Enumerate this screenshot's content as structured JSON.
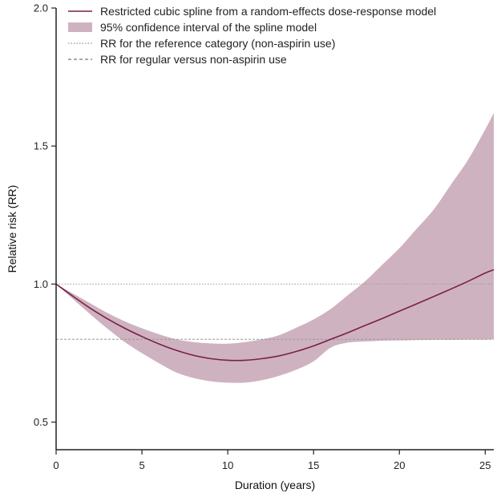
{
  "chart_data": {
    "type": "line",
    "xlabel": "Duration (years)",
    "ylabel": "Relative risk (RR)",
    "xlim": [
      0,
      25.5
    ],
    "ylim": [
      0.4,
      2.0
    ],
    "x_ticks": [
      0,
      5,
      10,
      15,
      20,
      25
    ],
    "y_ticks": [
      0.5,
      1.0,
      1.5,
      2.0
    ],
    "x_tick_labels": [
      "0",
      "5",
      "10",
      "15",
      "20",
      "25"
    ],
    "y_tick_labels": [
      "0.5",
      "1.0",
      "1.5",
      "2.0"
    ],
    "grid": false,
    "legend_position": "top",
    "legend": [
      {
        "label": "Restricted cubic spline from a random-effects dose-response model",
        "style": "solid-line"
      },
      {
        "label": "95% confidence interval of the spline model",
        "style": "filled-band"
      },
      {
        "label": "RR for the reference category (non-aspirin use)",
        "style": "dotted-line"
      },
      {
        "label": "RR for regular versus non-aspirin use",
        "style": "dashed-line"
      }
    ],
    "reference_lines": {
      "reference_category_rr": 1.0,
      "regular_vs_non_use_rr": 0.8
    },
    "series": [
      {
        "name": "Restricted cubic spline from a random-effects dose-response model",
        "type": "line",
        "x": [
          0,
          1,
          2,
          3,
          4,
          5,
          6,
          7,
          8,
          9,
          10,
          11,
          12,
          13,
          14,
          15,
          16,
          17,
          18,
          19,
          20,
          21,
          22,
          23,
          24,
          25,
          25.5
        ],
        "y": [
          1.0,
          0.955,
          0.912,
          0.874,
          0.84,
          0.81,
          0.783,
          0.76,
          0.742,
          0.73,
          0.724,
          0.724,
          0.73,
          0.74,
          0.756,
          0.776,
          0.8,
          0.824,
          0.85,
          0.875,
          0.902,
          0.928,
          0.955,
          0.982,
          1.01,
          1.04,
          1.052
        ]
      },
      {
        "name": "95% confidence interval of the spline model",
        "type": "band",
        "x": [
          0,
          1,
          2,
          3,
          4,
          5,
          6,
          7,
          8,
          9,
          10,
          11,
          12,
          13,
          14,
          15,
          16,
          17,
          18,
          19,
          20,
          21,
          22,
          23,
          24,
          25,
          25.5
        ],
        "lower": [
          1.0,
          0.945,
          0.89,
          0.838,
          0.79,
          0.75,
          0.713,
          0.68,
          0.66,
          0.648,
          0.643,
          0.643,
          0.652,
          0.668,
          0.69,
          0.72,
          0.77,
          0.788,
          0.792,
          0.795,
          0.796,
          0.797,
          0.798,
          0.798,
          0.799,
          0.799,
          0.8
        ],
        "upper": [
          1.0,
          0.965,
          0.93,
          0.895,
          0.865,
          0.84,
          0.818,
          0.8,
          0.79,
          0.785,
          0.784,
          0.79,
          0.8,
          0.815,
          0.842,
          0.872,
          0.91,
          0.96,
          1.01,
          1.07,
          1.13,
          1.2,
          1.27,
          1.36,
          1.45,
          1.56,
          1.62
        ]
      }
    ],
    "colors": {
      "line": "#7a1f4a",
      "band": "#cfb2c0",
      "axis": "#222222",
      "reference": "#999999"
    }
  }
}
